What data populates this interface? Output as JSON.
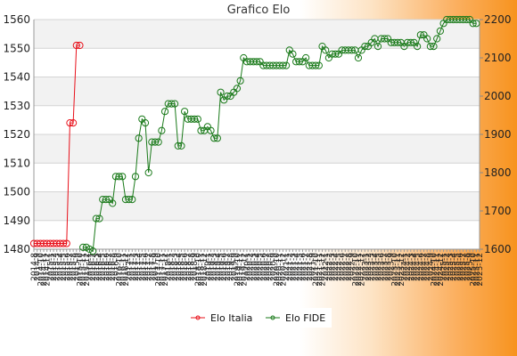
{
  "chart_data": {
    "type": "line",
    "title": "Grafico Elo",
    "xlabel": "",
    "ylabel_left": "",
    "ylabel_right": "",
    "left_axis": {
      "ylim": [
        1480,
        1560
      ],
      "ticks": [
        1480,
        1490,
        1500,
        1510,
        1520,
        1530,
        1540,
        1550,
        1560
      ]
    },
    "right_axis": {
      "ylim": [
        1600,
        2200
      ],
      "ticks": [
        1600,
        1700,
        1800,
        1900,
        2000,
        2100,
        2200
      ]
    },
    "grid": true,
    "legend_position": "bottom-center",
    "x_tick_labels": [
      "2014-8",
      "2014-9",
      "2014-10",
      "2014-11",
      "2014-12",
      "2015-1",
      "2015-2",
      "2015-3",
      "2015-4",
      "2015-5",
      "2015-6",
      "2015-7",
      "2015-8",
      "2015-9",
      "2015-10",
      "2015-11",
      "2015-12",
      "2016-1",
      "2016-2",
      "2016-3",
      "2016-4",
      "2016-5",
      "2016-6",
      "2016-7",
      "2016-8",
      "2016-9",
      "2016-10",
      "2016-11",
      "2016-12",
      "2017-1",
      "2017-2",
      "2017-3",
      "2017-4",
      "2017-5",
      "2017-6",
      "2017-7",
      "2017-8",
      "2017-9",
      "2017-10",
      "2017-11",
      "2017-12",
      "2018-1",
      "2018-2",
      "2018-3",
      "2018-4",
      "2018-5",
      "2018-6",
      "2018-7",
      "2018-8",
      "2018-9",
      "2018-10",
      "2018-11",
      "2018-12",
      "2019-1",
      "2019-2",
      "2019-3",
      "2019-4",
      "2019-5",
      "2019-6",
      "2019-7",
      "2019-8",
      "2019-9",
      "2019-10",
      "2019-11",
      "2019-12",
      "2020-1",
      "2020-2",
      "2020-3",
      "2020-4",
      "2020-5",
      "2020-6",
      "2020-7",
      "2020-8",
      "2020-9",
      "2020-10",
      "2020-11",
      "2020-12",
      "2021-1",
      "2021-2",
      "2021-3",
      "2021-4",
      "2021-5",
      "2021-6",
      "2021-7",
      "2021-8",
      "2021-9",
      "2021-10",
      "2021-11",
      "2021-12",
      "2022-1",
      "2022-2",
      "2022-3",
      "2022-4",
      "2022-5",
      "2022-6",
      "2022-7",
      "2022-8",
      "2022-9",
      "2022-10",
      "2022-11",
      "2022-12",
      "2023-1",
      "2023-2",
      "2023-3",
      "2023-4",
      "2023-5",
      "2023-6",
      "2023-7",
      "2023-8",
      "2023-9",
      "2023-10",
      "2023-11",
      "2023-12",
      "2024-1",
      "2024-2",
      "2024-3",
      "2024-4",
      "2024-5",
      "2024-6",
      "2024-7",
      "2024-8",
      "2024-9",
      "2024-10",
      "2024-11",
      "2024-12",
      "2025-1",
      "2025-2",
      "2025-3",
      "2025-4",
      "2025-5",
      "2025-6",
      "2025-7",
      "2025-8",
      "2025-9",
      "2025-10",
      "2025-11",
      "2025-12"
    ],
    "series": [
      {
        "name": "Elo Italia",
        "axis": "left",
        "color": "#e8101a",
        "values": [
          1482,
          1482,
          1482,
          1482,
          1482,
          1482,
          1482,
          1482,
          1482,
          1482,
          1482,
          1524,
          1524,
          1551,
          1551
        ]
      },
      {
        "name": "Elo FIDE",
        "axis": "right",
        "color": "#1a7a1a",
        "values": [
          null,
          null,
          null,
          null,
          null,
          null,
          null,
          null,
          null,
          null,
          null,
          null,
          null,
          null,
          null,
          1605,
          1605,
          1600,
          1595,
          1680,
          1680,
          1730,
          1730,
          1730,
          1720,
          1790,
          1790,
          1790,
          1730,
          1730,
          1730,
          1790,
          1890,
          1940,
          1930,
          1800,
          1880,
          1880,
          1880,
          1910,
          1960,
          1980,
          1980,
          1980,
          1870,
          1870,
          1960,
          1940,
          1940,
          1940,
          1940,
          1910,
          1910,
          1920,
          1910,
          1890,
          1890,
          2010,
          1990,
          2000,
          2000,
          2010,
          2020,
          2040,
          2100,
          2090,
          2090,
          2090,
          2090,
          2090,
          2080,
          2080,
          2080,
          2080,
          2080,
          2080,
          2080,
          2080,
          2120,
          2110,
          2090,
          2090,
          2090,
          2100,
          2080,
          2080,
          2080,
          2080,
          2130,
          2120,
          2100,
          2110,
          2110,
          2110,
          2120,
          2120,
          2120,
          2120,
          2120,
          2100,
          2120,
          2130,
          2130,
          2140,
          2150,
          2130,
          2150,
          2150,
          2150,
          2140,
          2140,
          2140,
          2140,
          2130,
          2140,
          2140,
          2140,
          2130,
          2160,
          2160,
          2150,
          2130,
          2130,
          2150,
          2170,
          2190,
          2200,
          2200,
          2200,
          2200,
          2200,
          2200,
          2200,
          2200,
          2190,
          2190
        ]
      }
    ]
  }
}
